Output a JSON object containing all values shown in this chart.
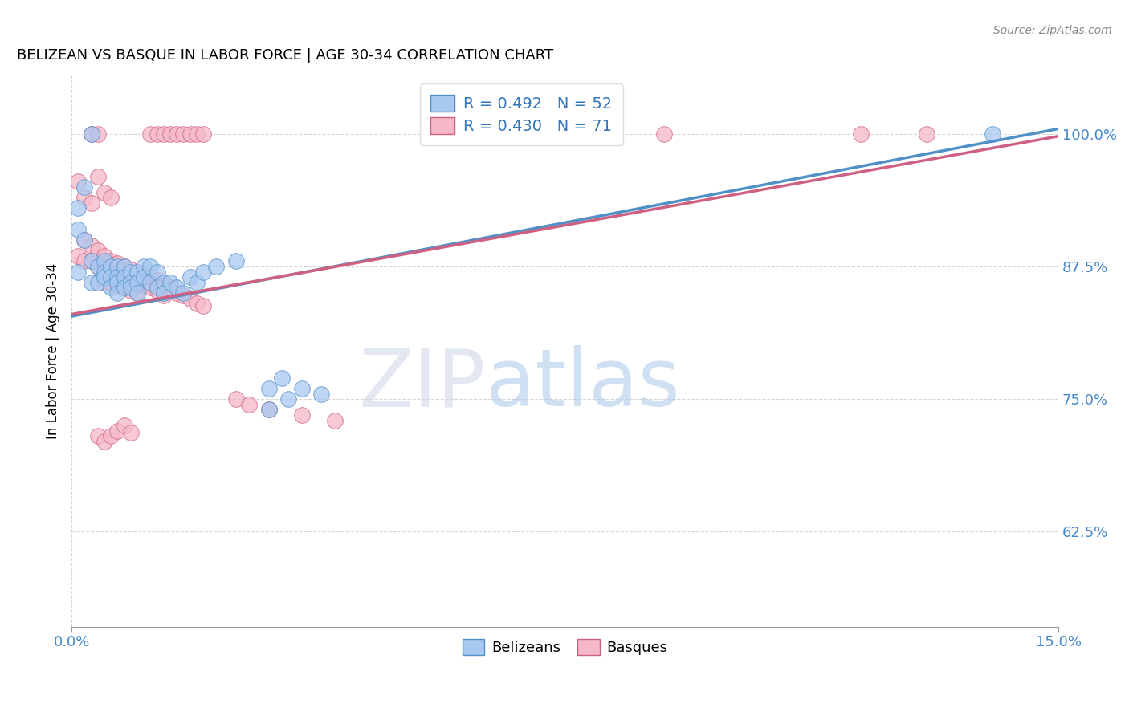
{
  "title": "BELIZEAN VS BASQUE IN LABOR FORCE | AGE 30-34 CORRELATION CHART",
  "source": "Source: ZipAtlas.com",
  "ylabel": "In Labor Force | Age 30-34",
  "ytick_labels": [
    "62.5%",
    "75.0%",
    "87.5%",
    "100.0%"
  ],
  "ytick_vals": [
    0.625,
    0.75,
    0.875,
    1.0
  ],
  "xlim": [
    0.0,
    0.15
  ],
  "ylim": [
    0.535,
    1.055
  ],
  "blue_color": "#A8C8F0",
  "pink_color": "#F5B8C8",
  "blue_edge_color": "#5090C8",
  "pink_edge_color": "#D06080",
  "blue_line_color": "#5090C8",
  "pink_line_color": "#D06080",
  "legend_blue_text": "R = 0.492   N = 52",
  "legend_pink_text": "R = 0.430   N = 71",
  "legend_belizeans": "Belizeans",
  "legend_basques": "Basques",
  "watermark_zip": "ZIP",
  "watermark_atlas": "atlas",
  "blue_line_x": [
    0.0,
    0.15
  ],
  "blue_line_y": [
    0.828,
    1.005
  ],
  "pink_line_x": [
    0.0,
    0.15
  ],
  "pink_line_y": [
    0.83,
    0.998
  ],
  "blue_points": [
    [
      0.001,
      0.91
    ],
    [
      0.001,
      0.87
    ],
    [
      0.002,
      0.9
    ],
    [
      0.003,
      0.88
    ],
    [
      0.003,
      0.86
    ],
    [
      0.004,
      0.875
    ],
    [
      0.004,
      0.86
    ],
    [
      0.005,
      0.88
    ],
    [
      0.005,
      0.87
    ],
    [
      0.005,
      0.865
    ],
    [
      0.006,
      0.875
    ],
    [
      0.006,
      0.865
    ],
    [
      0.006,
      0.855
    ],
    [
      0.007,
      0.875
    ],
    [
      0.007,
      0.865
    ],
    [
      0.007,
      0.86
    ],
    [
      0.007,
      0.85
    ],
    [
      0.008,
      0.875
    ],
    [
      0.008,
      0.865
    ],
    [
      0.008,
      0.855
    ],
    [
      0.009,
      0.87
    ],
    [
      0.009,
      0.86
    ],
    [
      0.009,
      0.855
    ],
    [
      0.01,
      0.87
    ],
    [
      0.01,
      0.86
    ],
    [
      0.01,
      0.85
    ],
    [
      0.011,
      0.875
    ],
    [
      0.011,
      0.865
    ],
    [
      0.012,
      0.875
    ],
    [
      0.012,
      0.86
    ],
    [
      0.013,
      0.87
    ],
    [
      0.013,
      0.855
    ],
    [
      0.014,
      0.86
    ],
    [
      0.014,
      0.85
    ],
    [
      0.015,
      0.86
    ],
    [
      0.016,
      0.855
    ],
    [
      0.017,
      0.85
    ],
    [
      0.018,
      0.865
    ],
    [
      0.019,
      0.86
    ],
    [
      0.02,
      0.87
    ],
    [
      0.022,
      0.875
    ],
    [
      0.025,
      0.88
    ],
    [
      0.001,
      0.93
    ],
    [
      0.002,
      0.95
    ],
    [
      0.03,
      0.76
    ],
    [
      0.032,
      0.77
    ],
    [
      0.03,
      0.74
    ],
    [
      0.033,
      0.75
    ],
    [
      0.035,
      0.76
    ],
    [
      0.038,
      0.755
    ],
    [
      0.003,
      1.0
    ],
    [
      0.14,
      1.0
    ]
  ],
  "pink_points": [
    [
      0.001,
      0.885
    ],
    [
      0.002,
      0.9
    ],
    [
      0.002,
      0.88
    ],
    [
      0.003,
      0.895
    ],
    [
      0.003,
      0.88
    ],
    [
      0.004,
      0.89
    ],
    [
      0.004,
      0.875
    ],
    [
      0.005,
      0.885
    ],
    [
      0.005,
      0.87
    ],
    [
      0.005,
      0.86
    ],
    [
      0.006,
      0.88
    ],
    [
      0.006,
      0.87
    ],
    [
      0.006,
      0.86
    ],
    [
      0.007,
      0.878
    ],
    [
      0.007,
      0.868
    ],
    [
      0.007,
      0.858
    ],
    [
      0.008,
      0.875
    ],
    [
      0.008,
      0.865
    ],
    [
      0.008,
      0.855
    ],
    [
      0.009,
      0.872
    ],
    [
      0.009,
      0.862
    ],
    [
      0.009,
      0.852
    ],
    [
      0.01,
      0.87
    ],
    [
      0.01,
      0.86
    ],
    [
      0.01,
      0.85
    ],
    [
      0.011,
      0.868
    ],
    [
      0.011,
      0.858
    ],
    [
      0.012,
      0.865
    ],
    [
      0.012,
      0.855
    ],
    [
      0.013,
      0.862
    ],
    [
      0.013,
      0.852
    ],
    [
      0.014,
      0.858
    ],
    [
      0.014,
      0.848
    ],
    [
      0.015,
      0.855
    ],
    [
      0.016,
      0.85
    ],
    [
      0.017,
      0.848
    ],
    [
      0.018,
      0.845
    ],
    [
      0.019,
      0.84
    ],
    [
      0.02,
      0.838
    ],
    [
      0.001,
      0.955
    ],
    [
      0.002,
      0.94
    ],
    [
      0.003,
      0.935
    ],
    [
      0.004,
      0.96
    ],
    [
      0.005,
      0.945
    ],
    [
      0.006,
      0.94
    ],
    [
      0.004,
      0.715
    ],
    [
      0.005,
      0.71
    ],
    [
      0.006,
      0.715
    ],
    [
      0.007,
      0.72
    ],
    [
      0.008,
      0.725
    ],
    [
      0.009,
      0.718
    ],
    [
      0.025,
      0.75
    ],
    [
      0.027,
      0.745
    ],
    [
      0.03,
      0.74
    ],
    [
      0.035,
      0.735
    ],
    [
      0.04,
      0.73
    ],
    [
      0.003,
      1.0
    ],
    [
      0.004,
      1.0
    ],
    [
      0.012,
      1.0
    ],
    [
      0.013,
      1.0
    ],
    [
      0.014,
      1.0
    ],
    [
      0.015,
      1.0
    ],
    [
      0.016,
      1.0
    ],
    [
      0.017,
      1.0
    ],
    [
      0.018,
      1.0
    ],
    [
      0.019,
      1.0
    ],
    [
      0.02,
      1.0
    ],
    [
      0.07,
      1.0
    ],
    [
      0.09,
      1.0
    ],
    [
      0.12,
      1.0
    ],
    [
      0.13,
      1.0
    ]
  ]
}
